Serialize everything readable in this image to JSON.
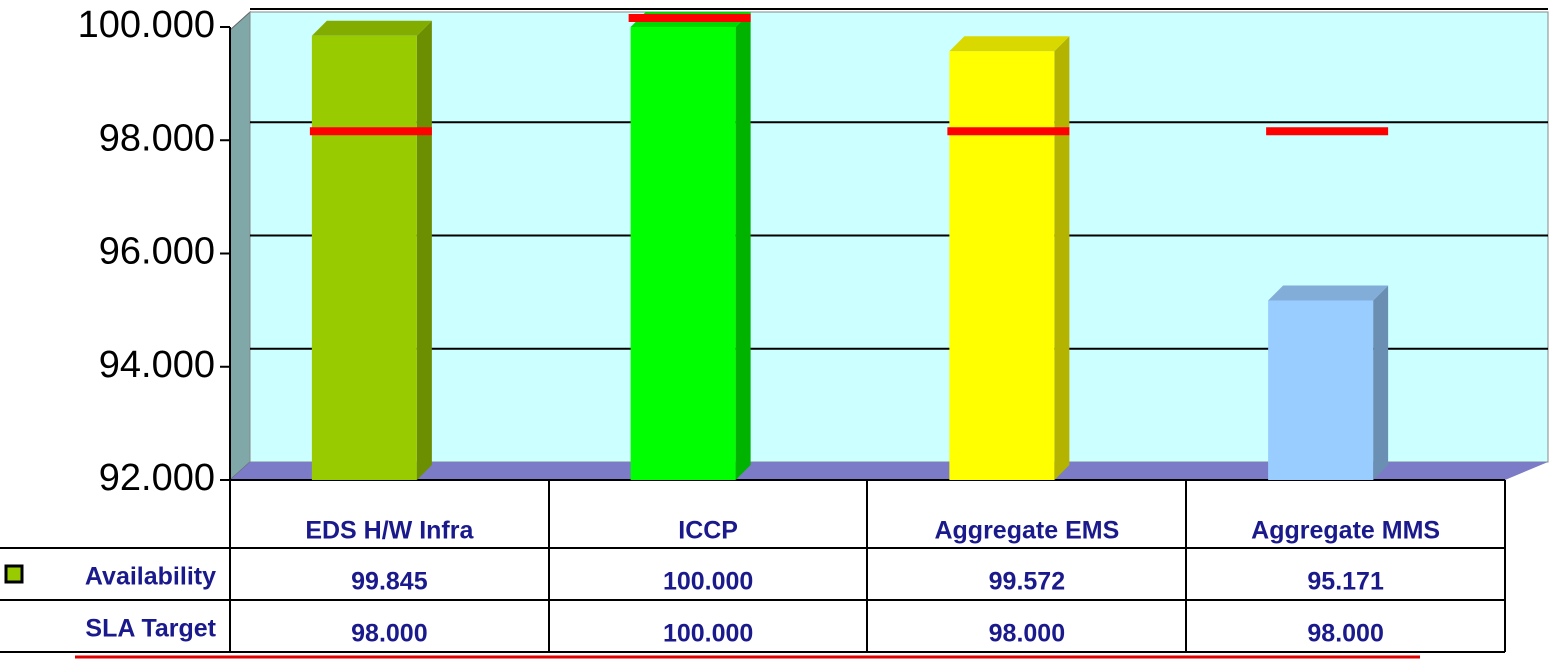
{
  "chart_data": {
    "type": "bar3d",
    "categories": [
      "EDS H/W Infra",
      "ICCP",
      "Aggregate EMS",
      "Aggregate MMS"
    ],
    "series": [
      {
        "name": "Availability",
        "colors": [
          "#99cc00",
          "#00ff00",
          "#ffff00",
          "#99ccff"
        ],
        "values": [
          99.845,
          100,
          99.572,
          95.171
        ],
        "value_labels": [
          "99.845",
          "100.000",
          "99.572",
          "95.171"
        ]
      },
      {
        "name": "SLA Target",
        "color": "#ff0000",
        "values": [
          98,
          100,
          98,
          98
        ],
        "value_labels": [
          "98.000",
          "100.000",
          "98.000",
          "98.000"
        ]
      }
    ],
    "ylim": [
      92,
      100
    ],
    "yticks": [
      {
        "value": 92,
        "label": "92.000"
      },
      {
        "value": 94,
        "label": "94.000"
      },
      {
        "value": 96,
        "label": "96.000"
      },
      {
        "value": 98,
        "label": "98.000"
      },
      {
        "value": 100,
        "label": "100.000"
      }
    ],
    "grid": true
  }
}
